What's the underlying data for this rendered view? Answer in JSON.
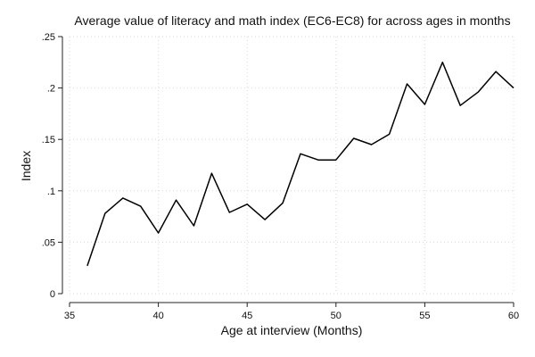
{
  "chart_data": {
    "type": "line",
    "title": "Average value of literacy and math index (EC6-EC8) for across ages in months",
    "xlabel": "Age at interview (Months)",
    "ylabel": "Index",
    "xlim": [
      35,
      60
    ],
    "ylim": [
      0,
      0.25
    ],
    "x_ticks": [
      35,
      40,
      45,
      50,
      55,
      60
    ],
    "x_tick_labels": [
      "35",
      "40",
      "45",
      "50",
      "55",
      "60"
    ],
    "y_ticks": [
      0,
      0.05,
      0.1,
      0.15,
      0.2,
      0.25
    ],
    "y_tick_labels": [
      "0",
      ".05",
      ".1",
      ".15",
      ".2",
      ".25"
    ],
    "grid": true,
    "series": [
      {
        "x": [
          36,
          37,
          38,
          39,
          40,
          41,
          42,
          43,
          44,
          45,
          46,
          47,
          48,
          49,
          50,
          51,
          52,
          53,
          54,
          55,
          56,
          57,
          58,
          59,
          60
        ],
        "values": [
          0.027,
          0.078,
          0.093,
          0.085,
          0.059,
          0.091,
          0.066,
          0.117,
          0.079,
          0.087,
          0.072,
          0.088,
          0.136,
          0.13,
          0.13,
          0.151,
          0.145,
          0.155,
          0.204,
          0.184,
          0.225,
          0.183,
          0.196,
          0.216,
          0.2
        ]
      }
    ]
  }
}
